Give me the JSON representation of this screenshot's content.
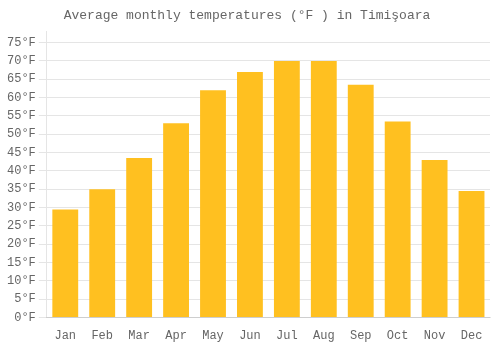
{
  "chart_data": {
    "type": "bar",
    "title": "Average monthly temperatures (°F ) in Timişoara",
    "categories": [
      "Jan",
      "Feb",
      "Mar",
      "Apr",
      "May",
      "Jun",
      "Jul",
      "Aug",
      "Sep",
      "Oct",
      "Nov",
      "Dec"
    ],
    "values": [
      29.5,
      35,
      43.5,
      53,
      62,
      67,
      70,
      70,
      63.5,
      53.5,
      43,
      34.5
    ],
    "color": "#FFC020",
    "ylim": [
      0,
      78
    ],
    "yticks": [
      {
        "value": 0,
        "label": "0°F"
      },
      {
        "value": 5,
        "label": "5°F"
      },
      {
        "value": 10,
        "label": "10°F"
      },
      {
        "value": 15,
        "label": "15°F"
      },
      {
        "value": 20,
        "label": "20°F"
      },
      {
        "value": 25,
        "label": "25°F"
      },
      {
        "value": 30,
        "label": "30°F"
      },
      {
        "value": 35,
        "label": "35°F"
      },
      {
        "value": 40,
        "label": "40°F"
      },
      {
        "value": 45,
        "label": "45°F"
      },
      {
        "value": 50,
        "label": "50°F"
      },
      {
        "value": 55,
        "label": "55°F"
      },
      {
        "value": 60,
        "label": "60°F"
      },
      {
        "value": 65,
        "label": "65°F"
      },
      {
        "value": 70,
        "label": "70°F"
      },
      {
        "value": 75,
        "label": "75°F"
      }
    ],
    "grid": true
  }
}
